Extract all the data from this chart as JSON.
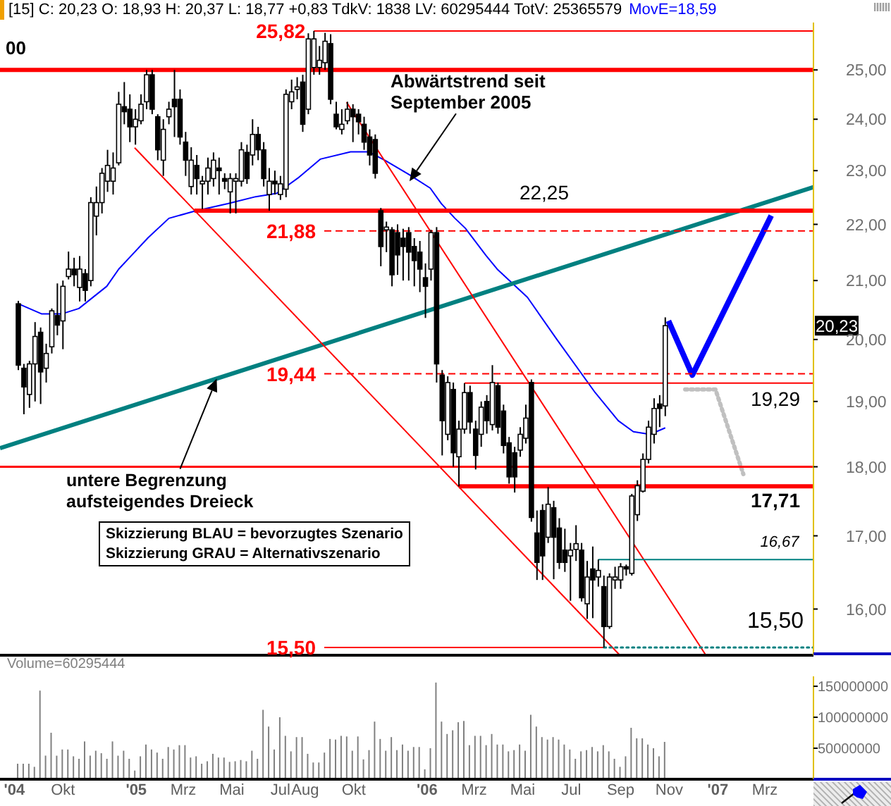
{
  "chart_data": [
    {
      "type": "candlestick",
      "title": "[15] C: 20,23 O: 18,93 H: 20,37 L: 18,77 +0,83 TdkV: 1838 LV: 60295444 TotV: 25365579",
      "x": [
        "2004-08-06",
        "2004-08-13",
        "2004-08-20",
        "2004-08-27",
        "2004-09-03",
        "2004-09-10",
        "2004-09-17",
        "2004-09-24",
        "2004-10-01",
        "2004-10-08",
        "2004-10-15",
        "2004-10-22",
        "2004-10-29",
        "2004-11-05",
        "2004-11-12",
        "2004-11-19",
        "2004-11-26",
        "2004-12-03",
        "2004-12-10",
        "2004-12-17",
        "2004-12-24",
        "2004-12-31",
        "2005-01-07",
        "2005-01-14",
        "2005-01-21",
        "2005-01-28",
        "2005-02-04",
        "2005-02-11",
        "2005-02-18",
        "2005-02-25",
        "2005-03-04",
        "2005-03-11",
        "2005-03-18",
        "2005-03-25",
        "2005-04-01",
        "2005-04-08",
        "2005-04-15",
        "2005-04-22",
        "2005-04-29",
        "2005-05-06",
        "2005-05-13",
        "2005-05-20",
        "2005-05-27",
        "2005-06-03",
        "2005-06-10",
        "2005-06-17",
        "2005-06-24",
        "2005-07-01",
        "2005-07-08",
        "2005-07-15",
        "2005-07-22",
        "2005-07-29",
        "2005-08-05",
        "2005-08-12",
        "2005-08-19",
        "2005-08-26",
        "2005-09-02",
        "2005-09-09",
        "2005-09-16",
        "2005-09-23",
        "2005-09-30",
        "2005-10-07",
        "2005-10-14",
        "2005-10-21",
        "2005-10-28",
        "2005-11-04",
        "2005-11-11",
        "2005-11-18",
        "2005-11-25",
        "2005-12-02",
        "2005-12-09",
        "2005-12-16",
        "2005-12-23",
        "2005-12-30",
        "2006-01-06",
        "2006-01-13",
        "2006-01-20",
        "2006-01-27",
        "2006-02-03",
        "2006-02-10",
        "2006-02-17",
        "2006-02-24",
        "2006-03-03",
        "2006-03-10",
        "2006-03-17",
        "2006-03-24",
        "2006-03-31",
        "2006-04-07",
        "2006-04-14",
        "2006-04-21",
        "2006-04-28",
        "2006-05-05",
        "2006-05-12",
        "2006-05-19",
        "2006-05-26",
        "2006-06-02",
        "2006-06-09",
        "2006-06-16",
        "2006-06-23",
        "2006-06-30",
        "2006-07-07",
        "2006-07-14",
        "2006-07-21",
        "2006-07-28",
        "2006-08-04",
        "2006-08-11",
        "2006-08-18",
        "2006-08-25",
        "2006-09-01",
        "2006-09-08",
        "2006-09-15",
        "2006-09-22",
        "2006-09-29",
        "2006-10-06",
        "2006-10-13",
        "2006-10-20",
        "2006-10-27"
      ],
      "ohlc": [
        [
          20.6,
          20.65,
          19.5,
          19.58
        ],
        [
          19.53,
          19.6,
          18.8,
          19.23
        ],
        [
          19.11,
          19.65,
          18.9,
          19.6
        ],
        [
          19.6,
          20.29,
          19.0,
          20.05
        ],
        [
          20.12,
          20.2,
          18.96,
          19.47
        ],
        [
          19.53,
          19.93,
          19.3,
          19.77
        ],
        [
          19.88,
          20.52,
          19.77,
          20.48
        ],
        [
          20.4,
          20.95,
          20.07,
          20.24
        ],
        [
          20.31,
          21.0,
          19.84,
          20.9
        ],
        [
          21.07,
          21.51,
          21.02,
          21.2
        ],
        [
          21.2,
          21.4,
          20.9,
          21.1
        ],
        [
          20.88,
          21.43,
          20.64,
          21.2
        ],
        [
          21.12,
          21.2,
          20.64,
          20.83
        ],
        [
          21.0,
          22.5,
          20.9,
          22.4
        ],
        [
          22.15,
          22.7,
          21.8,
          22.4
        ],
        [
          22.4,
          23.05,
          22.2,
          22.95
        ],
        [
          22.8,
          23.4,
          22.6,
          23.1
        ],
        [
          22.8,
          23.35,
          22.55,
          23.05
        ],
        [
          23.15,
          24.55,
          23.1,
          24.3
        ],
        [
          24.25,
          24.75,
          23.9,
          24.15
        ],
        [
          24.2,
          24.5,
          23.55,
          23.85
        ],
        [
          23.85,
          24.2,
          23.5,
          24.0
        ],
        [
          23.97,
          24.5,
          23.9,
          24.3
        ],
        [
          24.35,
          25.0,
          24.2,
          24.9
        ],
        [
          24.9,
          25.0,
          24.1,
          24.2
        ],
        [
          24.05,
          24.1,
          23.2,
          23.4
        ],
        [
          23.2,
          24.0,
          22.9,
          23.8
        ],
        [
          24.05,
          24.35,
          23.9,
          24.2
        ],
        [
          24.4,
          25.0,
          23.65,
          24.25
        ],
        [
          24.4,
          24.6,
          23.5,
          23.65
        ],
        [
          23.55,
          23.75,
          22.9,
          23.2
        ],
        [
          22.7,
          23.45,
          22.55,
          23.2
        ],
        [
          23.1,
          23.3,
          22.55,
          22.85
        ],
        [
          22.75,
          22.9,
          22.28,
          22.8
        ],
        [
          22.8,
          23.25,
          22.55,
          23.05
        ],
        [
          22.85,
          23.35,
          22.7,
          23.2
        ],
        [
          23.05,
          23.25,
          22.55,
          23.0
        ],
        [
          22.85,
          22.95,
          22.65,
          22.8
        ],
        [
          22.6,
          22.95,
          22.2,
          22.85
        ],
        [
          22.8,
          22.95,
          22.2,
          22.85
        ],
        [
          22.8,
          23.55,
          22.7,
          23.4
        ],
        [
          23.35,
          23.5,
          22.75,
          22.85
        ],
        [
          23.3,
          24.0,
          23.1,
          23.7
        ],
        [
          23.7,
          23.85,
          23.2,
          23.4
        ],
        [
          23.4,
          23.55,
          22.7,
          22.85
        ],
        [
          22.55,
          23.05,
          22.25,
          22.8
        ],
        [
          22.8,
          23.0,
          22.55,
          22.75
        ],
        [
          22.55,
          22.9,
          22.45,
          22.75
        ],
        [
          22.65,
          24.6,
          22.5,
          24.5
        ],
        [
          24.35,
          24.8,
          24.2,
          24.55
        ],
        [
          24.6,
          24.85,
          24.4,
          24.65
        ],
        [
          24.75,
          24.9,
          23.75,
          23.9
        ],
        [
          24.2,
          25.77,
          24.1,
          25.65
        ],
        [
          25.05,
          25.82,
          24.9,
          25.65
        ],
        [
          25.05,
          25.5,
          24.9,
          25.2
        ],
        [
          25.15,
          25.78,
          25.0,
          25.6
        ],
        [
          25.55,
          25.75,
          24.3,
          24.4
        ],
        [
          24.1,
          24.35,
          23.8,
          23.85
        ],
        [
          23.8,
          24.2,
          23.7,
          23.9
        ],
        [
          23.97,
          24.35,
          23.9,
          24.2
        ],
        [
          24.2,
          24.3,
          23.55,
          24.05
        ],
        [
          24.1,
          24.2,
          23.7,
          23.95
        ],
        [
          23.9,
          24.05,
          23.4,
          23.55
        ],
        [
          23.65,
          23.8,
          23.1,
          23.3
        ],
        [
          23.6,
          23.7,
          22.85,
          22.95
        ],
        [
          22.25,
          22.3,
          21.25,
          21.6
        ],
        [
          21.9,
          22.05,
          21.5,
          21.95
        ],
        [
          21.9,
          21.95,
          20.9,
          21.1
        ],
        [
          21.85,
          22.0,
          21.1,
          21.45
        ],
        [
          21.75,
          21.92,
          21.0,
          21.6
        ],
        [
          21.85,
          21.95,
          21.0,
          21.5
        ],
        [
          21.6,
          21.75,
          20.9,
          21.35
        ],
        [
          21.5,
          21.7,
          20.8,
          21.2
        ],
        [
          21.05,
          21.3,
          20.36,
          20.9
        ],
        [
          21.2,
          21.9,
          21.0,
          21.85
        ],
        [
          21.85,
          21.95,
          19.3,
          19.6
        ],
        [
          19.42,
          19.5,
          18.17,
          18.7
        ],
        [
          18.49,
          19.4,
          18.4,
          19.3
        ],
        [
          19.19,
          19.3,
          18.0,
          18.21
        ],
        [
          18.15,
          18.7,
          17.71,
          18.57
        ],
        [
          18.57,
          19.29,
          18.5,
          19.14
        ],
        [
          19.14,
          19.25,
          18.5,
          18.68
        ],
        [
          18.57,
          18.7,
          17.96,
          18.17
        ],
        [
          18.49,
          19.0,
          18.3,
          18.91
        ],
        [
          19.0,
          19.1,
          18.5,
          18.7
        ],
        [
          18.64,
          19.58,
          18.55,
          19.3
        ],
        [
          19.25,
          19.3,
          18.5,
          18.6
        ],
        [
          18.85,
          18.95,
          18.2,
          18.32
        ],
        [
          18.36,
          18.45,
          17.75,
          17.85
        ],
        [
          18.21,
          18.3,
          17.62,
          17.85
        ],
        [
          18.25,
          18.6,
          18.15,
          18.49
        ],
        [
          18.43,
          18.95,
          18.35,
          18.74
        ],
        [
          19.3,
          19.35,
          17.2,
          17.26
        ],
        [
          17.04,
          17.36,
          16.39,
          16.63
        ],
        [
          17.36,
          17.45,
          16.39,
          16.72
        ],
        [
          16.98,
          17.7,
          16.9,
          17.45
        ],
        [
          17.4,
          17.5,
          16.4,
          16.98
        ],
        [
          17.11,
          17.25,
          16.54,
          16.63
        ],
        [
          16.8,
          17.1,
          16.5,
          16.63
        ],
        [
          16.72,
          16.9,
          16.11,
          16.8
        ],
        [
          16.81,
          17.15,
          16.65,
          16.89
        ],
        [
          16.8,
          16.9,
          16.1,
          16.15
        ],
        [
          16.07,
          16.65,
          15.87,
          16.43
        ],
        [
          16.54,
          16.85,
          15.88,
          16.39
        ],
        [
          16.43,
          16.67,
          16.3,
          16.52
        ],
        [
          16.3,
          16.45,
          15.5,
          15.77
        ],
        [
          15.77,
          16.48,
          15.74,
          16.43
        ],
        [
          16.39,
          16.57,
          16.27,
          16.43
        ],
        [
          16.39,
          16.62,
          16.27,
          16.57
        ],
        [
          16.57,
          16.6,
          16.45,
          16.54
        ],
        [
          16.48,
          17.6,
          16.45,
          17.57
        ],
        [
          17.3,
          17.8,
          17.21,
          17.72
        ],
        [
          17.64,
          18.2,
          17.62,
          18.11
        ],
        [
          18.11,
          18.7,
          18.05,
          18.6
        ],
        [
          18.49,
          19.05,
          18.35,
          18.89
        ],
        [
          18.96,
          19.1,
          18.6,
          18.89
        ],
        [
          18.93,
          20.37,
          18.77,
          20.23
        ]
      ],
      "series": [
        {
          "name": "MovE=18,59",
          "type": "line",
          "color": "#0000ff",
          "x": [
            "2004-08-06",
            "2004-09-04",
            "2004-09-30",
            "2004-10-21",
            "2004-11-25",
            "2004-12-10",
            "2004-12-26",
            "2005-01-16",
            "2005-02-11",
            "2005-03-15",
            "2005-04-26",
            "2005-05-31",
            "2005-06-26",
            "2005-07-23",
            "2005-08-20",
            "2005-09-27",
            "2005-10-20",
            "2005-11-10",
            "2005-12-10",
            "2006-01-05",
            "2006-01-19",
            "2006-02-05",
            "2006-02-18",
            "2006-03-16",
            "2006-03-30",
            "2006-05-07",
            "2006-06-13",
            "2006-07-31",
            "2006-08-29",
            "2006-09-17",
            "2006-10-08",
            "2006-10-27"
          ],
          "values": [
            20.6,
            20.43,
            20.43,
            20.52,
            20.9,
            21.2,
            21.44,
            21.76,
            22.11,
            22.24,
            22.38,
            22.51,
            22.57,
            22.86,
            23.22,
            23.36,
            23.36,
            23.19,
            22.92,
            22.67,
            22.38,
            22.11,
            21.93,
            21.44,
            21.2,
            20.71,
            20.0,
            19.14,
            18.7,
            18.53,
            18.49,
            18.59
          ]
        },
        {
          "type": "line",
          "color": "#008080",
          "x": [
            "2004-07-14",
            "2007-05-01"
          ],
          "values": [
            18.28,
            22.69
          ]
        },
        {
          "type": "line",
          "color": "#ff0000",
          "x": [
            "2005-09-22",
            "2006-12-17"
          ],
          "values": [
            24.34,
            15.4
          ]
        },
        {
          "type": "line",
          "color": "#ff0000",
          "x": [
            "2004-12-30",
            "2006-08-31"
          ],
          "values": [
            23.44,
            15.4
          ]
        },
        {
          "type": "line",
          "color": "#0000ff",
          "x": [
            "2006-10-31",
            "2006-11-30",
            "2007-03-09"
          ],
          "values": [
            20.31,
            19.42,
            22.16
          ]
        },
        {
          "type": "line",
          "color": "#c0c0c0",
          "line_style": "dotted",
          "x": [
            "2006-11-21",
            "2006-12-29",
            "2007-02-02"
          ],
          "values": [
            19.19,
            19.19,
            17.89
          ]
        },
        {
          "name": "25,82",
          "type": "line",
          "color": "#ff0000",
          "x": [
            "2005-08-12",
            "2007-05-01"
          ],
          "values": [
            25.82,
            25.82
          ]
        },
        {
          "name": "00",
          "type": "line",
          "color": "#ff0000",
          "x": [
            "2004-07-14",
            "2007-05-01"
          ],
          "values": [
            25,
            25
          ]
        },
        {
          "name": "22,25",
          "type": "line",
          "color": "#ff0000",
          "x": [
            "2005-03-15",
            "2007-05-01"
          ],
          "values": [
            22.25,
            22.25
          ]
        },
        {
          "name": "21,88",
          "type": "line",
          "color": "#ff0000",
          "line_style": "dashed",
          "x": [
            "2005-08-25",
            "2007-05-01"
          ],
          "values": [
            21.88,
            21.88
          ]
        },
        {
          "name": "19,44",
          "type": "line",
          "color": "#ff0000",
          "line_style": "dashed",
          "x": [
            "2005-08-25",
            "2007-05-01"
          ],
          "values": [
            19.44,
            19.44
          ]
        },
        {
          "name": "19,29",
          "type": "line",
          "color": "#ff0000",
          "x": [
            "2006-02-17",
            "2007-05-01"
          ],
          "values": [
            19.29,
            19.29
          ]
        },
        {
          "type": "line",
          "color": "#ff0000",
          "x": [
            "2004-07-14",
            "2007-05-01"
          ],
          "values": [
            18,
            18
          ]
        },
        {
          "name": "17,71",
          "type": "line",
          "color": "#ff0000",
          "x": [
            "2006-02-10",
            "2007-05-01"
          ],
          "values": [
            17.71,
            17.71
          ]
        },
        {
          "name": "16,67",
          "type": "line",
          "color": "#008080",
          "x": [
            "2006-08-04",
            "2007-05-01"
          ],
          "values": [
            16.67,
            16.67
          ]
        },
        {
          "name": "15,50",
          "type": "line",
          "color": "#ff0000",
          "x": [
            "2005-08-25",
            "2006-08-11"
          ],
          "values": [
            15.5,
            15.5
          ]
        },
        {
          "name": "15,50",
          "type": "line",
          "color": "#008080",
          "line_style": "dotted",
          "x": [
            "2006-08-11",
            "2007-05-01"
          ],
          "values": [
            15.5,
            15.5
          ]
        }
      ],
      "xlim": [
        "2004-07-14",
        "2007-05-01"
      ],
      "ylim": [
        15.4,
        26
      ],
      "yticks": [
        {
          "value": 16,
          "label": "16,00"
        },
        {
          "value": 17,
          "label": "17,00"
        },
        {
          "value": 18,
          "label": "18,00"
        },
        {
          "value": 19,
          "label": "19,00"
        },
        {
          "value": 20,
          "label": "20,00"
        },
        {
          "value": 21,
          "label": "21,00"
        },
        {
          "value": 22,
          "label": "22,00"
        },
        {
          "value": 23,
          "label": "23,00"
        },
        {
          "value": 24,
          "label": "24,00"
        },
        {
          "value": 25,
          "label": "25,00"
        }
      ],
      "log": true,
      "tick_labels": "y",
      "annotations": [
        {
          "text": "Abwärtstrend seit September 2005",
          "x": "2005-12-10",
          "y": 22.8
        },
        {
          "text": "untere Begrenzung aufsteigendes Dreieck",
          "x": "2005-04-12",
          "y": 19.36
        },
        "Skizzierung BLAU = bevorzugtes Szenario",
        "Skizzierung GRAU = Alternativszenario",
        {
          "text": "20,23",
          "y": 20.23
        }
      ]
    },
    {
      "type": "bar",
      "x": [
        "2004-08-06",
        "2004-08-13",
        "2004-08-20",
        "2004-08-27",
        "2004-09-03",
        "2004-09-10",
        "2004-09-17",
        "2004-09-24",
        "2004-10-01",
        "2004-10-08",
        "2004-10-15",
        "2004-10-22",
        "2004-10-29",
        "2004-11-05",
        "2004-11-12",
        "2004-11-19",
        "2004-11-26",
        "2004-12-03",
        "2004-12-10",
        "2004-12-17",
        "2004-12-24",
        "2004-12-31",
        "2005-01-07",
        "2005-01-14",
        "2005-01-21",
        "2005-01-28",
        "2005-02-04",
        "2005-02-11",
        "2005-02-18",
        "2005-02-25",
        "2005-03-04",
        "2005-03-11",
        "2005-03-18",
        "2005-03-25",
        "2005-04-01",
        "2005-04-08",
        "2005-04-15",
        "2005-04-22",
        "2005-04-29",
        "2005-05-06",
        "2005-05-13",
        "2005-05-20",
        "2005-05-27",
        "2005-06-03",
        "2005-06-10",
        "2005-06-17",
        "2005-06-24",
        "2005-07-01",
        "2005-07-08",
        "2005-07-15",
        "2005-07-22",
        "2005-07-29",
        "2005-08-05",
        "2005-08-12",
        "2005-08-19",
        "2005-08-26",
        "2005-09-02",
        "2005-09-09",
        "2005-09-16",
        "2005-09-23",
        "2005-09-30",
        "2005-10-07",
        "2005-10-14",
        "2005-10-21",
        "2005-10-28",
        "2005-11-04",
        "2005-11-11",
        "2005-11-18",
        "2005-11-25",
        "2005-12-02",
        "2005-12-09",
        "2005-12-16",
        "2005-12-23",
        "2005-12-30",
        "2006-01-06",
        "2006-01-13",
        "2006-01-20",
        "2006-01-27",
        "2006-02-03",
        "2006-02-10",
        "2006-02-17",
        "2006-02-24",
        "2006-03-03",
        "2006-03-10",
        "2006-03-17",
        "2006-03-24",
        "2006-03-31",
        "2006-04-07",
        "2006-04-14",
        "2006-04-21",
        "2006-04-28",
        "2006-05-05",
        "2006-05-12",
        "2006-05-19",
        "2006-05-26",
        "2006-06-02",
        "2006-06-09",
        "2006-06-16",
        "2006-06-23",
        "2006-06-30",
        "2006-07-07",
        "2006-07-14",
        "2006-07-21",
        "2006-07-28",
        "2006-08-04",
        "2006-08-11",
        "2006-08-18",
        "2006-08-25",
        "2006-09-01",
        "2006-09-08",
        "2006-09-15",
        "2006-09-22",
        "2006-09-29",
        "2006-10-06",
        "2006-10-13",
        "2006-10-20",
        "2006-10-27"
      ],
      "series": [
        {
          "name": "Volume=60295444",
          "color": "#808080",
          "values": [
            25000000,
            25000000,
            25000000,
            20000000,
            143000000,
            38000000,
            75000000,
            38000000,
            48000000,
            48000000,
            37000000,
            33000000,
            61000000,
            38000000,
            46000000,
            42000000,
            33000000,
            61000000,
            38000000,
            46000000,
            33000000,
            14000000,
            37000000,
            56000000,
            48000000,
            43000000,
            33000000,
            52000000,
            48000000,
            55000000,
            55000000,
            35000000,
            37000000,
            25000000,
            29000000,
            41000000,
            35000000,
            35000000,
            28000000,
            29000000,
            31000000,
            29000000,
            46000000,
            33000000,
            112000000,
            85000000,
            48000000,
            100000000,
            70000000,
            45000000,
            68000000,
            68000000,
            41000000,
            27000000,
            27000000,
            43000000,
            65000000,
            64000000,
            70000000,
            69000000,
            46000000,
            69000000,
            32000000,
            47000000,
            93000000,
            65000000,
            46000000,
            68000000,
            47000000,
            56000000,
            46000000,
            52000000,
            52000000,
            16000000,
            50000000,
            156000000,
            93000000,
            73000000,
            79000000,
            92000000,
            94000000,
            55000000,
            70000000,
            70000000,
            55000000,
            73000000,
            56000000,
            56000000,
            45000000,
            47000000,
            56000000,
            46000000,
            104000000,
            85000000,
            68000000,
            64000000,
            68000000,
            64000000,
            56000000,
            48000000,
            33000000,
            45000000,
            47000000,
            52000000,
            45000000,
            55000000,
            45000000,
            33000000,
            20000000,
            37000000,
            83000000,
            66000000,
            66000000,
            56000000,
            50000000,
            37000000,
            60295444
          ]
        }
      ],
      "xlim": [
        "2004-07-14",
        "2007-05-01"
      ],
      "xticks": [
        {
          "value": "2004-08-01",
          "label": "'04"
        },
        {
          "value": "2004-10-01",
          "label": "Okt"
        },
        {
          "value": "2005-01-01",
          "label": "'05"
        },
        {
          "value": "2005-03-01",
          "label": "Mrz"
        },
        {
          "value": "2005-05-01",
          "label": "Mai"
        },
        {
          "value": "2005-07-01",
          "label": "Jul"
        },
        {
          "value": "2005-08-01",
          "label": "Aug"
        },
        {
          "value": "2005-10-01",
          "label": "Okt"
        },
        {
          "value": "2006-01-01",
          "label": "'06"
        },
        {
          "value": "2006-03-01",
          "label": "Mrz"
        },
        {
          "value": "2006-05-01",
          "label": "Mai"
        },
        {
          "value": "2006-07-01",
          "label": "Jul"
        },
        {
          "value": "2006-09-01",
          "label": "Sep"
        },
        {
          "value": "2006-11-01",
          "label": "Nov"
        },
        {
          "value": "2007-01-01",
          "label": "'07"
        },
        {
          "value": "2007-03-01",
          "label": "Mrz"
        }
      ],
      "ylim": [
        0,
        166000000
      ],
      "yticks": [
        50000000,
        100000000,
        150000000
      ]
    }
  ]
}
